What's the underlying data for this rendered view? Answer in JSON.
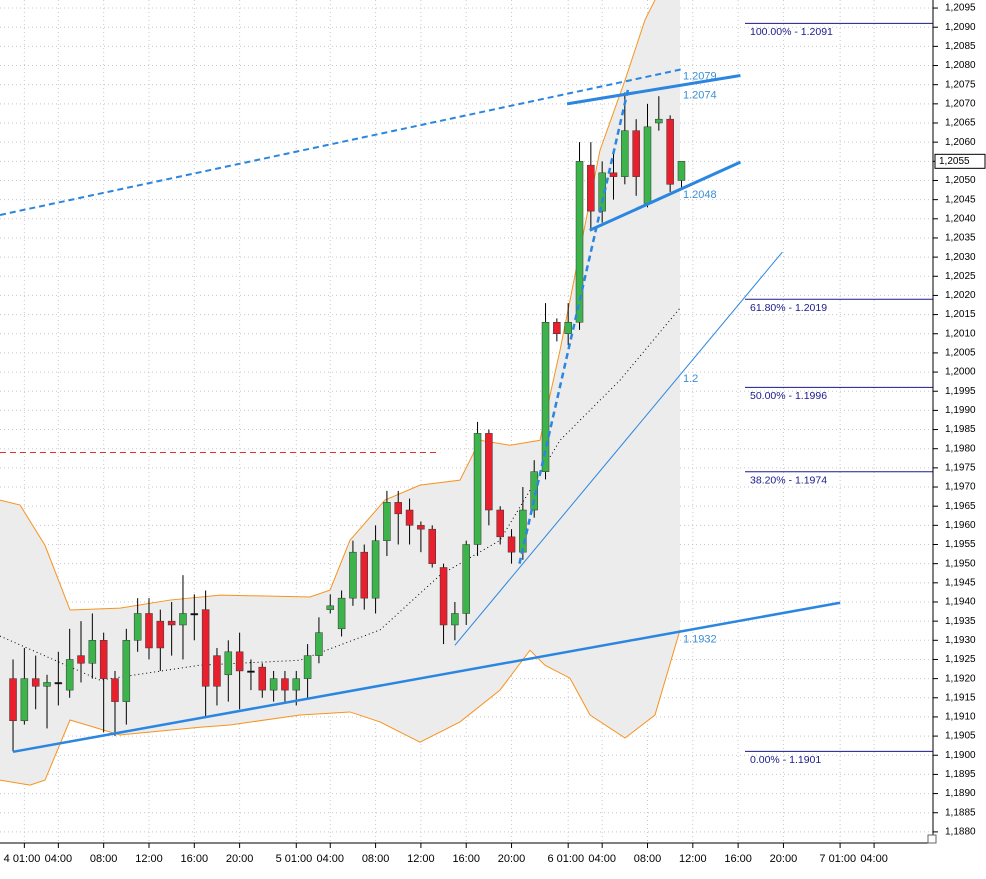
{
  "chart_data": {
    "type": "candlestick",
    "x": [
      0,
      1,
      2,
      3,
      4,
      5,
      6,
      7,
      8,
      9,
      10,
      11,
      12,
      13,
      14,
      15,
      16,
      17,
      18,
      19,
      20,
      21,
      22,
      23,
      24,
      25,
      26,
      27,
      28,
      29,
      30,
      31,
      32,
      33,
      34,
      35,
      36,
      37,
      38,
      39,
      40,
      41,
      42,
      43,
      44,
      45,
      46,
      47,
      48,
      49,
      50,
      51,
      52,
      53,
      54,
      55,
      56,
      57,
      58,
      59
    ],
    "open": [
      1.192,
      1.1909,
      1.192,
      1.1918,
      1.1919,
      1.1917,
      1.1926,
      1.1924,
      1.193,
      1.192,
      1.1914,
      1.193,
      1.1937,
      1.1935,
      1.1935,
      1.1934,
      1.1937,
      1.1938,
      1.1926,
      1.1921,
      1.1927,
      1.1922,
      1.1923,
      1.1917,
      1.192,
      1.1917,
      1.192,
      1.1926,
      1.1938,
      1.1933,
      1.1941,
      1.1953,
      1.1941,
      1.1956,
      1.1966,
      1.1964,
      1.196,
      1.1959,
      1.1949,
      1.1934,
      1.1937,
      1.1955,
      1.1984,
      1.1964,
      1.1957,
      1.1953,
      1.1964,
      1.1974,
      1.2013,
      1.201,
      1.2013,
      1.2054,
      1.2042,
      1.2052,
      1.2051,
      1.2063,
      1.2044,
      1.2065,
      1.2066,
      1.205
    ],
    "high": [
      1.1925,
      1.1928,
      1.1926,
      1.1921,
      1.1927,
      1.1933,
      1.1935,
      1.1937,
      1.1932,
      1.1922,
      1.1933,
      1.1941,
      1.1941,
      1.1938,
      1.194,
      1.1947,
      1.1942,
      1.1943,
      1.1928,
      1.193,
      1.1932,
      1.1925,
      1.1924,
      1.1922,
      1.1922,
      1.1922,
      1.1929,
      1.1936,
      1.1942,
      1.1943,
      1.1956,
      1.1955,
      1.196,
      1.1969,
      1.1969,
      1.1967,
      1.1961,
      1.196,
      1.195,
      1.194,
      1.1956,
      1.1987,
      1.1985,
      1.1965,
      1.1959,
      1.197,
      1.1977,
      1.2018,
      1.2014,
      1.2018,
      1.206,
      1.206,
      1.2055,
      1.2058,
      1.2073,
      1.2066,
      1.207,
      1.2072,
      1.2067,
      1.2055
    ],
    "low": [
      1.1901,
      1.1908,
      1.1912,
      1.1907,
      1.1913,
      1.1915,
      1.1919,
      1.192,
      1.1906,
      1.1905,
      1.1908,
      1.1927,
      1.1925,
      1.1922,
      1.1926,
      1.1925,
      1.193,
      1.191,
      1.1913,
      1.1914,
      1.1912,
      1.1917,
      1.1915,
      1.1914,
      1.1914,
      1.1913,
      1.1915,
      1.1924,
      1.1937,
      1.1931,
      1.1939,
      1.1938,
      1.1937,
      1.1952,
      1.1955,
      1.1955,
      1.1953,
      1.1949,
      1.1929,
      1.193,
      1.1934,
      1.1952,
      1.196,
      1.1955,
      1.195,
      1.1951,
      1.1962,
      1.1972,
      1.2008,
      1.2007,
      1.2011,
      1.2037,
      1.2039,
      1.2045,
      1.2049,
      1.2046,
      1.2043,
      1.2063,
      1.2047,
      1.2048
    ],
    "close": [
      1.1909,
      1.192,
      1.1918,
      1.1919,
      1.1919,
      1.1925,
      1.1924,
      1.193,
      1.192,
      1.1914,
      1.193,
      1.1937,
      1.1928,
      1.1928,
      1.1934,
      1.1937,
      1.1937,
      1.1918,
      1.1918,
      1.1927,
      1.1922,
      1.1922,
      1.1917,
      1.192,
      1.1917,
      1.192,
      1.1926,
      1.1932,
      1.1939,
      1.1941,
      1.1953,
      1.1941,
      1.1956,
      1.1966,
      1.1963,
      1.196,
      1.1959,
      1.195,
      1.1934,
      1.1937,
      1.1955,
      1.1984,
      1.1964,
      1.1957,
      1.1953,
      1.1964,
      1.1974,
      1.2013,
      1.201,
      1.2013,
      1.2055,
      1.2042,
      1.2052,
      1.2051,
      1.2063,
      1.2051,
      1.2064,
      1.2066,
      1.2049,
      1.2055
    ],
    "up_color": "#3cb44b",
    "down_color": "#e8202e",
    "xlim": [
      -1.15,
      81.2
    ],
    "ylim": [
      1.18771,
      1.20971
    ],
    "xticks": [
      {
        "value": 1,
        "label": "4 01:00"
      },
      {
        "value": 4,
        "label": "04:00"
      },
      {
        "value": 8,
        "label": "08:00"
      },
      {
        "value": 12,
        "label": "12:00"
      },
      {
        "value": 16,
        "label": "16:00"
      },
      {
        "value": 20,
        "label": "20:00"
      },
      {
        "value": 25,
        "label": "5 01:00"
      },
      {
        "value": 28,
        "label": "04:00"
      },
      {
        "value": 32,
        "label": "08:00"
      },
      {
        "value": 36,
        "label": "12:00"
      },
      {
        "value": 40,
        "label": "16:00"
      },
      {
        "value": 44,
        "label": "20:00"
      },
      {
        "value": 49,
        "label": "6 01:00"
      },
      {
        "value": 52,
        "label": "04:00"
      },
      {
        "value": 56,
        "label": "08:00"
      },
      {
        "value": 60,
        "label": "12:00"
      },
      {
        "value": 64,
        "label": "16:00"
      },
      {
        "value": 68,
        "label": "20:00"
      },
      {
        "value": 73,
        "label": "7 01:00"
      },
      {
        "value": 76,
        "label": "04:00"
      }
    ],
    "yticks": [
      {
        "value": 1.188,
        "label": "1,1880"
      },
      {
        "value": 1.1885,
        "label": "1,1885"
      },
      {
        "value": 1.189,
        "label": "1,1890"
      },
      {
        "value": 1.1895,
        "label": "1,1895"
      },
      {
        "value": 1.19,
        "label": "1,1900"
      },
      {
        "value": 1.1905,
        "label": "1,1905"
      },
      {
        "value": 1.191,
        "label": "1,1910"
      },
      {
        "value": 1.1915,
        "label": "1,1915"
      },
      {
        "value": 1.192,
        "label": "1,1920"
      },
      {
        "value": 1.1925,
        "label": "1,1925"
      },
      {
        "value": 1.193,
        "label": "1,1930"
      },
      {
        "value": 1.1935,
        "label": "1,1935"
      },
      {
        "value": 1.194,
        "label": "1,1940"
      },
      {
        "value": 1.1945,
        "label": "1,1945"
      },
      {
        "value": 1.195,
        "label": "1,1950"
      },
      {
        "value": 1.1955,
        "label": "1,1955"
      },
      {
        "value": 1.196,
        "label": "1,1960"
      },
      {
        "value": 1.1965,
        "label": "1,1965"
      },
      {
        "value": 1.197,
        "label": "1,1970"
      },
      {
        "value": 1.1975,
        "label": "1,1975"
      },
      {
        "value": 1.198,
        "label": "1,1980"
      },
      {
        "value": 1.1985,
        "label": "1,1985"
      },
      {
        "value": 1.199,
        "label": "1,1990"
      },
      {
        "value": 1.1995,
        "label": "1,1995"
      },
      {
        "value": 1.2,
        "label": "1,2000"
      },
      {
        "value": 1.2005,
        "label": "1,2005"
      },
      {
        "value": 1.201,
        "label": "1,2010"
      },
      {
        "value": 1.2015,
        "label": "1,2015"
      },
      {
        "value": 1.202,
        "label": "1,2020"
      },
      {
        "value": 1.2025,
        "label": "1,2025"
      },
      {
        "value": 1.203,
        "label": "1,2030"
      },
      {
        "value": 1.2035,
        "label": "1,2035"
      },
      {
        "value": 1.204,
        "label": "1,2040"
      },
      {
        "value": 1.2045,
        "label": "1,2045"
      },
      {
        "value": 1.205,
        "label": "1,2050"
      },
      {
        "value": 1.2055,
        "label": "1,2055"
      },
      {
        "value": 1.206,
        "label": "1,2060"
      },
      {
        "value": 1.2065,
        "label": "1,2065"
      },
      {
        "value": 1.207,
        "label": "1,2070"
      },
      {
        "value": 1.2075,
        "label": "1,2075"
      },
      {
        "value": 1.208,
        "label": "1,2080"
      },
      {
        "value": 1.2085,
        "label": "1,2085"
      },
      {
        "value": 1.209,
        "label": "1,2090"
      },
      {
        "value": 1.2095,
        "label": "1,2095"
      }
    ],
    "grid": true,
    "last_price": {
      "value": 1.2055,
      "label": "1,2055"
    },
    "bands": {
      "color": "#f7931e",
      "fill": "#ececec",
      "upper": {
        "x": [
          -1.15,
          0.62,
          2.82,
          5.03,
          9.44,
          13.86,
          18.27,
          26.21,
          27.98,
          29.74,
          32.83,
          35.92,
          39.45,
          41.22,
          43.87,
          46.51,
          48.28,
          50.04,
          51.81,
          54.02,
          55.78,
          57.1
        ],
        "values": [
          1.19666,
          1.19653,
          1.19548,
          1.19379,
          1.19384,
          1.19405,
          1.19418,
          1.19413,
          1.19431,
          1.19561,
          1.19666,
          1.19705,
          1.19718,
          1.19822,
          1.19809,
          1.19822,
          1.20057,
          1.20318,
          1.20579,
          1.20762,
          1.20919,
          1.20997
        ]
      },
      "lower": {
        "x": [
          -1.15,
          1.5,
          2.82,
          5.03,
          9.44,
          16.5,
          19.15,
          25.33,
          29.74,
          32.39,
          35.92,
          39.45,
          42.98,
          45.63,
          46.95,
          49.16,
          50.93,
          54.02,
          56.66,
          58.87
        ],
        "values": [
          1.18935,
          1.18922,
          1.18935,
          1.19092,
          1.19053,
          1.19073,
          1.19079,
          1.19105,
          1.19113,
          1.19087,
          1.19034,
          1.19087,
          1.1917,
          1.19274,
          1.19235,
          1.19201,
          1.19105,
          1.19045,
          1.19105,
          1.19327
        ]
      },
      "middle": {
        "x": [
          -1.15,
          7.68,
          16.5,
          25.33,
          32.39,
          37.69,
          42.98,
          48.28,
          53.58,
          58.87
        ],
        "values": [
          1.19311,
          1.19196,
          1.19235,
          1.19248,
          1.19327,
          1.1947,
          1.19561,
          1.19822,
          1.19979,
          1.20167
        ]
      }
    },
    "trend_lines": [
      {
        "color": "#2a86e0",
        "dashed": true,
        "width": 2,
        "x": [
          -1.15,
          59
        ],
        "values": [
          1.2041,
          1.2079
        ],
        "label": 1.2079
      },
      {
        "color": "#2a86e0",
        "dashed": false,
        "width": 3,
        "x": [
          48.9,
          64.2
        ],
        "values": [
          1.207,
          1.20774
        ],
        "label": 1.2074
      },
      {
        "color": "#2a86e0",
        "dashed": false,
        "width": 3,
        "x": [
          50.9,
          64.2
        ],
        "values": [
          1.2037,
          1.20548
        ],
        "label": 1.2048
      },
      {
        "color": "#2a86e0",
        "dashed": true,
        "width": 2.5,
        "x": [
          44.7,
          54.3
        ],
        "values": [
          1.195,
          1.2074
        ]
      },
      {
        "color": "#2a86e0",
        "dashed": false,
        "width": 1,
        "x": [
          39,
          67.9
        ],
        "values": [
          1.19287,
          1.20313
        ],
        "label": 1.2
      },
      {
        "color": "#2a86e0",
        "dashed": false,
        "width": 2.5,
        "x": [
          0,
          73
        ],
        "values": [
          1.19009,
          1.19398
        ],
        "label": 1.1932
      },
      {
        "color": "#e03030",
        "dashed": true,
        "width": 1,
        "x": [
          -1.15,
          37.7
        ],
        "values": [
          1.1979,
          1.1979
        ]
      }
    ],
    "fib_levels": [
      {
        "label": "100.00% - 1.2091",
        "value": 1.2091
      },
      {
        "label": "61.80% - 1.2019",
        "value": 1.2019
      },
      {
        "label": "50.00% - 1.1996",
        "value": 1.1996
      },
      {
        "label": "38.20% - 1.1974",
        "value": 1.1974
      },
      {
        "label": "0.00% - 1.1901",
        "value": 1.1901
      }
    ],
    "fib_color": "#1a1a8c"
  }
}
